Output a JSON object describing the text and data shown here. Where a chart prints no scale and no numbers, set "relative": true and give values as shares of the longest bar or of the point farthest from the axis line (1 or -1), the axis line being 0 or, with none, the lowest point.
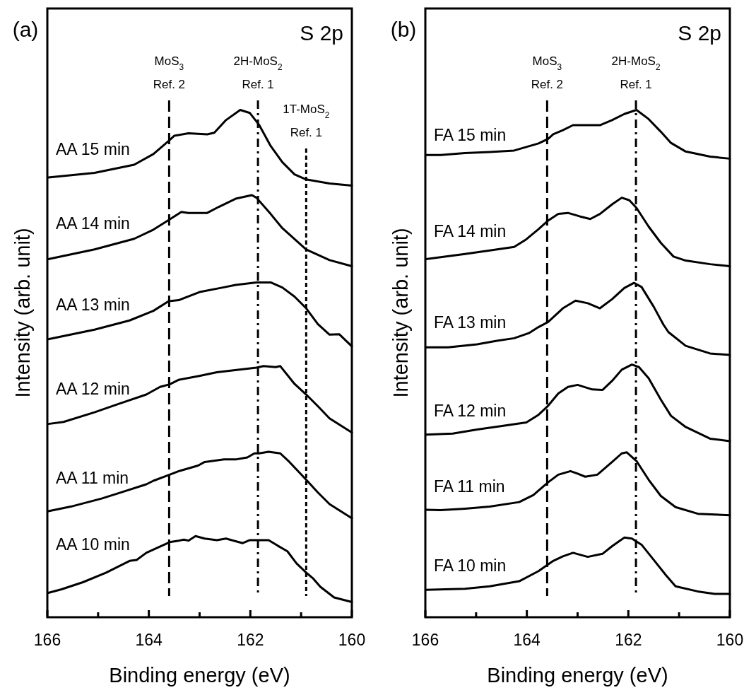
{
  "chart_data": [
    {
      "type": "line",
      "title": "(a)",
      "subtitle": "S 2p",
      "xlabel": "Binding energy (eV)",
      "ylabel": "Intensity (arb. unit)",
      "relative": true,
      "xlim": [
        166,
        160
      ],
      "xticks": [
        166,
        {
          "value": 165,
          "label": null
        },
        164,
        {
          "value": 163,
          "label": null
        },
        162,
        {
          "value": 161,
          "label": null
        },
        160
      ],
      "ref_lines": [
        {
          "axis": "x",
          "value": 163.6,
          "label": "MoS$_{3}$\nRef. 2",
          "line_style": "dashed",
          "color": "#000000"
        },
        {
          "axis": "x",
          "value": 161.85,
          "label": "2H-MoS$_{2}$\nRef. 1",
          "line_style": "dashdot",
          "color": "#000000"
        },
        {
          "axis": "x",
          "value": 160.9,
          "label": "1T-MoS$_{2}$\nRef. 1",
          "line_style": "dotted",
          "color": "#000000"
        }
      ],
      "series": [
        {
          "name": "AA 15 min",
          "color": "#000000",
          "x": [
            165.98,
            165.07,
            164.29,
            163.91,
            163.61,
            163.5,
            163.22,
            162.85,
            162.71,
            162.48,
            162.2,
            162.01,
            161.83,
            161.6,
            161.37,
            161.13,
            160.9,
            160.44,
            160.0
          ],
          "values": [
            0.867,
            0.876,
            0.892,
            0.913,
            0.939,
            0.949,
            0.954,
            0.952,
            0.955,
            0.98,
            1.0,
            0.994,
            0.971,
            0.929,
            0.897,
            0.873,
            0.863,
            0.855,
            0.851
          ]
        },
        {
          "name": "AA 14 min",
          "color": "#000000",
          "x": [
            165.98,
            165.07,
            164.29,
            163.91,
            163.61,
            163.36,
            163.22,
            162.85,
            162.62,
            162.29,
            161.97,
            161.88,
            161.6,
            161.37,
            160.9,
            160.44,
            160.0
          ],
          "values": [
            0.706,
            0.725,
            0.746,
            0.764,
            0.783,
            0.799,
            0.797,
            0.797,
            0.809,
            0.825,
            0.832,
            0.827,
            0.795,
            0.767,
            0.725,
            0.704,
            0.692
          ]
        },
        {
          "name": "AA 13 min",
          "color": "#000000",
          "x": [
            165.98,
            165.07,
            164.38,
            163.91,
            163.61,
            163.41,
            163.0,
            162.54,
            162.29,
            161.88,
            161.6,
            161.37,
            161.13,
            160.9,
            160.67,
            160.44,
            160.25,
            160.0
          ],
          "values": [
            0.548,
            0.567,
            0.585,
            0.604,
            0.623,
            0.625,
            0.641,
            0.65,
            0.655,
            0.66,
            0.66,
            0.65,
            0.632,
            0.609,
            0.578,
            0.557,
            0.558,
            0.534
          ]
        },
        {
          "name": "AA 12 min",
          "color": "#000000",
          "x": [
            165.98,
            165.68,
            165.07,
            164.61,
            164.05,
            163.78,
            163.59,
            163.41,
            162.99,
            162.66,
            162.06,
            161.88,
            161.74,
            161.5,
            161.41,
            161.13,
            160.9,
            160.67,
            160.44,
            160.0
          ],
          "values": [
            0.381,
            0.385,
            0.404,
            0.42,
            0.439,
            0.454,
            0.459,
            0.468,
            0.476,
            0.483,
            0.49,
            0.492,
            0.495,
            0.493,
            0.495,
            0.46,
            0.439,
            0.416,
            0.392,
            0.364
          ]
        },
        {
          "name": "AA 11 min",
          "color": "#000000",
          "x": [
            165.98,
            165.54,
            164.93,
            164.61,
            164.05,
            163.91,
            163.59,
            163.41,
            163.03,
            162.9,
            162.52,
            162.29,
            162.06,
            161.92,
            161.83,
            161.64,
            161.41,
            161.23,
            160.9,
            160.67,
            160.44,
            160.0
          ],
          "values": [
            0.209,
            0.218,
            0.234,
            0.244,
            0.262,
            0.269,
            0.281,
            0.288,
            0.299,
            0.306,
            0.311,
            0.311,
            0.315,
            0.323,
            0.323,
            0.326,
            0.323,
            0.306,
            0.271,
            0.246,
            0.223,
            0.195
          ]
        },
        {
          "name": "AA 10 min",
          "color": "#000000",
          "x": [
            165.98,
            165.72,
            165.3,
            164.84,
            164.38,
            164.24,
            164.05,
            163.59,
            163.41,
            163.31,
            163.22,
            163.08,
            162.9,
            162.66,
            162.48,
            162.15,
            162.01,
            161.88,
            161.64,
            161.46,
            161.27,
            161.09,
            160.9,
            160.76,
            160.62,
            160.35,
            160.0
          ],
          "values": [
            0.048,
            0.055,
            0.069,
            0.088,
            0.111,
            0.113,
            0.127,
            0.148,
            0.151,
            0.153,
            0.151,
            0.16,
            0.155,
            0.152,
            0.155,
            0.146,
            0.152,
            0.152,
            0.152,
            0.141,
            0.13,
            0.106,
            0.088,
            0.076,
            0.06,
            0.039,
            0.03
          ]
        }
      ]
    },
    {
      "type": "line",
      "title": "(b)",
      "subtitle": "S 2p",
      "xlabel": "Binding energy (eV)",
      "ylabel": "Intensity (arb. unit)",
      "relative": true,
      "xlim": [
        166,
        160
      ],
      "xticks": [
        166,
        {
          "value": 165,
          "label": null
        },
        164,
        {
          "value": 163,
          "label": null
        },
        162,
        {
          "value": 161,
          "label": null
        },
        160
      ],
      "ref_lines": [
        {
          "axis": "x",
          "value": 163.6,
          "label": "MoS$_{3}$\nRef. 2",
          "line_style": "dashed",
          "color": "#000000"
        },
        {
          "axis": "x",
          "value": 161.85,
          "label": "2H-MoS$_{2}$\nRef. 1",
          "line_style": "dashdot",
          "color": "#000000"
        }
      ],
      "series": [
        {
          "name": "FA 15 min",
          "color": "#000000",
          "x": [
            165.99,
            165.7,
            165.22,
            164.73,
            164.25,
            163.77,
            163.58,
            163.48,
            163.29,
            163.09,
            162.8,
            162.56,
            162.32,
            162.08,
            161.84,
            161.6,
            161.36,
            161.16,
            160.87,
            160.39,
            160.0
          ],
          "values": [
            0.911,
            0.911,
            0.915,
            0.917,
            0.92,
            0.934,
            0.943,
            0.952,
            0.96,
            0.97,
            0.97,
            0.97,
            0.98,
            0.992,
            1.0,
            0.982,
            0.957,
            0.935,
            0.918,
            0.908,
            0.904
          ]
        },
        {
          "name": "FA 14 min",
          "color": "#000000",
          "x": [
            165.99,
            165.22,
            164.73,
            164.25,
            164.01,
            163.77,
            163.58,
            163.38,
            163.19,
            162.95,
            162.75,
            162.56,
            162.32,
            162.13,
            161.98,
            161.84,
            161.6,
            161.36,
            161.11,
            160.87,
            160.39,
            160.0
          ],
          "values": [
            0.706,
            0.716,
            0.723,
            0.73,
            0.745,
            0.765,
            0.782,
            0.795,
            0.797,
            0.79,
            0.785,
            0.795,
            0.814,
            0.827,
            0.822,
            0.807,
            0.77,
            0.738,
            0.711,
            0.703,
            0.696,
            0.692
          ]
        },
        {
          "name": "FA 13 min",
          "color": "#000000",
          "x": [
            165.99,
            165.55,
            164.98,
            164.59,
            164.25,
            163.96,
            163.77,
            163.58,
            163.29,
            163.04,
            162.8,
            162.56,
            162.32,
            162.08,
            161.89,
            161.74,
            161.5,
            161.31,
            161.21,
            160.87,
            160.39,
            160.0
          ],
          "values": [
            0.532,
            0.532,
            0.538,
            0.545,
            0.55,
            0.56,
            0.572,
            0.582,
            0.609,
            0.624,
            0.619,
            0.609,
            0.627,
            0.649,
            0.659,
            0.651,
            0.612,
            0.577,
            0.562,
            0.535,
            0.52,
            0.517
          ]
        },
        {
          "name": "FA 12 min",
          "color": "#000000",
          "x": [
            165.99,
            165.46,
            164.98,
            164.49,
            164.01,
            163.77,
            163.58,
            163.38,
            163.19,
            163.0,
            162.71,
            162.51,
            162.32,
            162.13,
            161.93,
            161.79,
            161.6,
            161.36,
            161.16,
            160.87,
            160.39,
            160.0
          ],
          "values": [
            0.36,
            0.362,
            0.37,
            0.377,
            0.384,
            0.399,
            0.417,
            0.441,
            0.454,
            0.458,
            0.449,
            0.448,
            0.466,
            0.488,
            0.498,
            0.493,
            0.471,
            0.429,
            0.397,
            0.375,
            0.352,
            0.347
          ]
        },
        {
          "name": "FA 11 min",
          "color": "#000000",
          "x": [
            165.99,
            165.7,
            165.22,
            164.73,
            164.15,
            163.87,
            163.58,
            163.38,
            163.14,
            163.0,
            162.85,
            162.61,
            162.32,
            162.13,
            162.03,
            161.84,
            161.6,
            161.36,
            161.07,
            160.63,
            160.0
          ],
          "values": [
            0.212,
            0.211,
            0.214,
            0.218,
            0.227,
            0.241,
            0.266,
            0.281,
            0.288,
            0.283,
            0.277,
            0.281,
            0.306,
            0.323,
            0.325,
            0.308,
            0.271,
            0.239,
            0.217,
            0.204,
            0.201
          ]
        },
        {
          "name": "FA 10 min",
          "color": "#000000",
          "x": [
            165.99,
            165.22,
            164.73,
            164.15,
            163.77,
            163.48,
            163.29,
            163.09,
            162.8,
            162.51,
            162.32,
            162.08,
            161.93,
            161.74,
            161.5,
            161.26,
            161.07,
            160.64,
            160.3,
            160.0
          ],
          "values": [
            0.054,
            0.056,
            0.061,
            0.071,
            0.091,
            0.111,
            0.12,
            0.127,
            0.119,
            0.125,
            0.14,
            0.157,
            0.155,
            0.143,
            0.113,
            0.083,
            0.061,
            0.051,
            0.046,
            0.046
          ]
        }
      ]
    }
  ]
}
